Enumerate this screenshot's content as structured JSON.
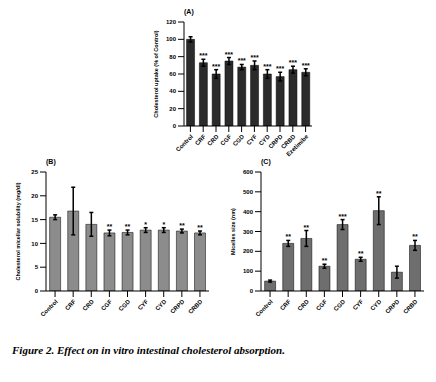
{
  "caption": "Figure 2. Effect on in vitro intestinal cholesterol absorption.",
  "chart_data": [
    {
      "type": "bar",
      "title": "(A)",
      "y_label": "Cholesterol uptake (% of Control)",
      "categories": [
        "Control",
        "CRF",
        "CRD",
        "CGF",
        "CGD",
        "CYF",
        "CYD",
        "CRPD",
        "CRBD",
        "Ezetimibe"
      ],
      "values": [
        100,
        73,
        60,
        75,
        68,
        70,
        60,
        57,
        65,
        62
      ],
      "errors": [
        3,
        4,
        5,
        4,
        3,
        5,
        5,
        5,
        4,
        4
      ],
      "annotations": [
        null,
        "***",
        "***",
        "***",
        "***",
        "***",
        "***",
        "***",
        "***",
        "***"
      ],
      "color": "#2b2b2b",
      "ylim": [
        0,
        120
      ],
      "yticks": [
        0,
        20,
        40,
        60,
        80,
        100,
        120
      ],
      "grid": false
    },
    {
      "type": "bar",
      "title": "(B)",
      "y_label": "Cholesterol micellar solubility (mg/dl)",
      "categories": [
        "Control",
        "CRF",
        "CRD",
        "CGF",
        "CGD",
        "CYF",
        "CYD",
        "CRPD",
        "CRBD"
      ],
      "values": [
        15.5,
        16.8,
        14,
        12.2,
        12.3,
        12.8,
        12.8,
        12.6,
        12.2
      ],
      "errors": [
        0.5,
        5,
        2.5,
        0.6,
        0.5,
        0.5,
        0.5,
        0.4,
        0.4
      ],
      "annotations": [
        null,
        null,
        null,
        "**",
        "**",
        "*",
        "*",
        "**",
        "**"
      ],
      "color": "#8c8c8c",
      "ylim": [
        0,
        25
      ],
      "yticks": [
        0,
        5,
        10,
        15,
        20,
        25
      ],
      "grid": false
    },
    {
      "type": "bar",
      "title": "(C)",
      "y_label": "Micelles size (nm)",
      "categories": [
        "Control",
        "CRF",
        "CRD",
        "CGF",
        "CGD",
        "CYF",
        "CYD",
        "CRPD",
        "CRBD"
      ],
      "values": [
        50,
        240,
        265,
        125,
        335,
        160,
        405,
        95,
        230
      ],
      "errors": [
        5,
        15,
        40,
        10,
        25,
        10,
        70,
        30,
        25
      ],
      "annotations": [
        null,
        "**",
        "**",
        "**",
        "***",
        "**",
        "**",
        null,
        "**"
      ],
      "color": "#6e6e6e",
      "ylim": [
        0,
        600
      ],
      "yticks": [
        0,
        100,
        200,
        300,
        400,
        500,
        600
      ],
      "grid": false
    }
  ]
}
